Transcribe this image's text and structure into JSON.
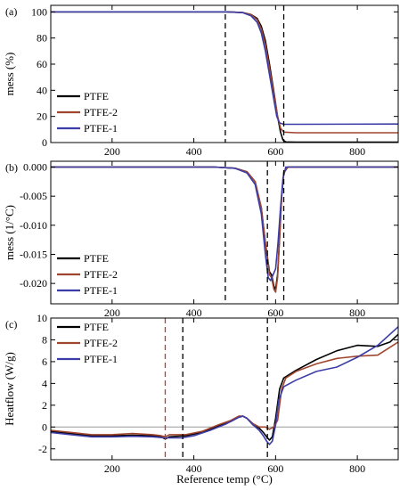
{
  "figure": {
    "xlabel": "Reference temp (°C)"
  },
  "colors": {
    "PTFE": "#000000",
    "PTFE-2": "#a0462f",
    "PTFE-1": "#3c3ca8",
    "dashed_black": "#000000",
    "dashed_red": "#c0392b",
    "zero_line": "#999999"
  },
  "chart_data": [
    {
      "type": "line",
      "panel_label": "(a)",
      "ylabel": "mess (%)",
      "xlim": [
        50,
        900
      ],
      "ylim": [
        0,
        105
      ],
      "x_ticks": [
        200,
        400,
        600,
        800
      ],
      "y_ticks": [
        0,
        20,
        40,
        60,
        80,
        100
      ],
      "y_tick_labels": [
        "0",
        "20",
        "40",
        "60",
        "80",
        "100"
      ],
      "vlines": [
        {
          "x": 477,
          "color": "dashed_black"
        },
        {
          "x": 620,
          "color": "dashed_black"
        }
      ],
      "legend": [
        "PTFE",
        "PTFE-2",
        "PTFE-1"
      ],
      "series": [
        {
          "name": "PTFE",
          "x": [
            50,
            480,
            520,
            540,
            555,
            565,
            575,
            585,
            595,
            605,
            612,
            618,
            625,
            650,
            900
          ],
          "y": [
            100,
            100,
            99.5,
            98,
            95,
            89,
            78,
            60,
            40,
            20,
            8,
            2,
            0.5,
            0.3,
            0.3
          ]
        },
        {
          "name": "PTFE-2",
          "x": [
            50,
            480,
            520,
            540,
            555,
            565,
            575,
            585,
            595,
            605,
            612,
            620,
            650,
            900
          ],
          "y": [
            100,
            100,
            99.5,
            98,
            94,
            87,
            75,
            57,
            38,
            20,
            11,
            8,
            7.5,
            7.5
          ]
        },
        {
          "name": "PTFE-1",
          "x": [
            50,
            480,
            520,
            540,
            555,
            565,
            575,
            585,
            595,
            603,
            610,
            620,
            650,
            900
          ],
          "y": [
            100,
            100,
            99.4,
            97,
            92,
            84,
            70,
            52,
            34,
            20,
            15,
            14,
            14,
            14.2
          ]
        }
      ]
    },
    {
      "type": "line",
      "panel_label": "(b)",
      "ylabel": "mess (1/°C)",
      "xlim": [
        50,
        900
      ],
      "ylim": [
        -0.0235,
        0.001
      ],
      "x_ticks": [
        200,
        400,
        600,
        800
      ],
      "y_ticks": [
        0,
        -0.005,
        -0.01,
        -0.015,
        -0.02
      ],
      "y_tick_labels": [
        "0.000",
        "-0.005",
        "-0.010",
        "-0.015",
        "-0.020"
      ],
      "vlines": [
        {
          "x": 477,
          "color": "dashed_black"
        },
        {
          "x": 580,
          "color": "dashed_black"
        },
        {
          "x": 620,
          "color": "dashed_black"
        }
      ],
      "legend": [
        "PTFE",
        "PTFE-2",
        "PTFE-1"
      ],
      "series": [
        {
          "name": "PTFE",
          "x": [
            50,
            450,
            500,
            530,
            550,
            565,
            575,
            585,
            590,
            596,
            600,
            605,
            610,
            615,
            620,
            630,
            900
          ],
          "y": [
            0,
            0,
            -0.0002,
            -0.0008,
            -0.0025,
            -0.007,
            -0.013,
            -0.018,
            -0.0185,
            -0.0205,
            -0.021,
            -0.0185,
            -0.012,
            -0.005,
            -0.001,
            0,
            0
          ]
        },
        {
          "name": "PTFE-2",
          "x": [
            50,
            450,
            500,
            530,
            550,
            565,
            575,
            585,
            590,
            596,
            600,
            605,
            610,
            615,
            620,
            630,
            900
          ],
          "y": [
            0,
            0,
            -0.0002,
            -0.0008,
            -0.0025,
            -0.007,
            -0.013,
            -0.0185,
            -0.019,
            -0.021,
            -0.0215,
            -0.019,
            -0.012,
            -0.005,
            -0.001,
            0,
            0
          ]
        },
        {
          "name": "PTFE-1",
          "x": [
            50,
            450,
            500,
            530,
            550,
            565,
            575,
            582,
            588,
            594,
            600,
            606,
            612,
            618,
            625,
            900
          ],
          "y": [
            0,
            0,
            -0.0002,
            -0.001,
            -0.003,
            -0.008,
            -0.015,
            -0.019,
            -0.0195,
            -0.0185,
            -0.0175,
            -0.013,
            -0.007,
            -0.002,
            0,
            0
          ]
        }
      ]
    },
    {
      "type": "line",
      "panel_label": "(c)",
      "ylabel": "Heatflow (W/g)",
      "xlim": [
        50,
        900
      ],
      "ylim": [
        -3,
        10
      ],
      "x_ticks": [
        200,
        400,
        600,
        800
      ],
      "y_ticks": [
        -2,
        0,
        2,
        4,
        6,
        8,
        10
      ],
      "y_tick_labels": [
        "-2",
        "0",
        "2",
        "4",
        "6",
        "8",
        "10"
      ],
      "vlines": [
        {
          "x": 330,
          "color": "dashed_red"
        },
        {
          "x": 373,
          "color": "dashed_black"
        },
        {
          "x": 580,
          "color": "dashed_black"
        }
      ],
      "hlines": [
        {
          "y": 0,
          "color": "zero_line"
        }
      ],
      "legend": [
        "PTFE",
        "PTFE-2",
        "PTFE-1"
      ],
      "x_tick_labels": [
        "200",
        "400",
        "600",
        "800"
      ],
      "series": [
        {
          "name": "PTFE",
          "x": [
            50,
            100,
            150,
            200,
            250,
            300,
            320,
            330,
            340,
            380,
            420,
            460,
            490,
            510,
            520,
            530,
            545,
            560,
            570,
            578,
            585,
            592,
            600,
            610,
            620,
            650,
            700,
            750,
            800,
            850,
            880,
            900
          ],
          "y": [
            -0.4,
            -0.6,
            -0.8,
            -0.8,
            -0.75,
            -0.8,
            -0.9,
            -1.1,
            -0.9,
            -0.8,
            -0.5,
            0.1,
            0.5,
            0.9,
            1.0,
            0.8,
            0.2,
            -0.1,
            -0.5,
            -0.9,
            -1.2,
            -0.9,
            0.8,
            3.5,
            4.5,
            5.2,
            6.2,
            7.0,
            7.5,
            7.4,
            7.8,
            8.5
          ]
        },
        {
          "name": "PTFE-2",
          "x": [
            50,
            100,
            150,
            200,
            250,
            300,
            320,
            330,
            340,
            380,
            420,
            460,
            490,
            510,
            520,
            530,
            545,
            560,
            575,
            585,
            595,
            605,
            615,
            625,
            650,
            700,
            750,
            800,
            850,
            900
          ],
          "y": [
            -0.3,
            -0.5,
            -0.7,
            -0.7,
            -0.6,
            -0.7,
            -0.8,
            -0.9,
            -0.7,
            -0.7,
            -0.4,
            0.2,
            0.6,
            1.0,
            1.0,
            0.8,
            0.3,
            0.0,
            0.0,
            -0.2,
            0.0,
            0.6,
            3.5,
            4.5,
            5.1,
            5.8,
            6.3,
            6.5,
            6.6,
            7.8
          ]
        },
        {
          "name": "PTFE-1",
          "x": [
            50,
            100,
            150,
            200,
            250,
            300,
            330,
            340,
            370,
            400,
            440,
            480,
            510,
            520,
            530,
            545,
            560,
            570,
            578,
            585,
            592,
            600,
            608,
            620,
            650,
            700,
            750,
            800,
            850,
            900
          ],
          "y": [
            -0.5,
            -0.7,
            -0.9,
            -0.9,
            -0.85,
            -0.9,
            -1.0,
            -1.0,
            -1.0,
            -0.8,
            -0.3,
            0.3,
            0.9,
            1.0,
            0.8,
            0.2,
            -0.3,
            -0.8,
            -1.3,
            -1.6,
            -1.3,
            0.2,
            2.5,
            3.7,
            4.3,
            5.1,
            5.5,
            6.4,
            7.5,
            9.2
          ]
        }
      ]
    }
  ]
}
